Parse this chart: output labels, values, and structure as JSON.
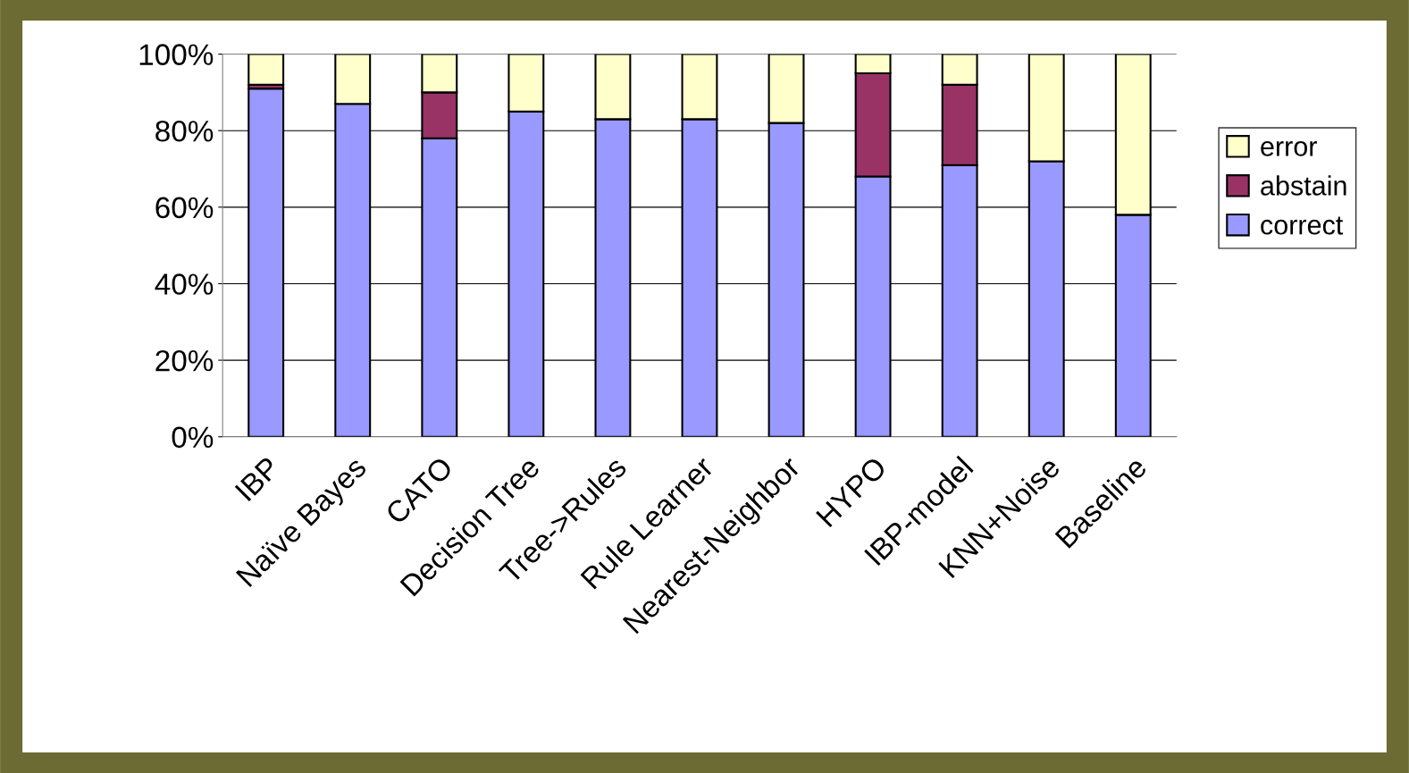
{
  "chart_data": {
    "type": "bar",
    "stacked": true,
    "categories": [
      "IBP",
      "Naïve Bayes",
      "CATO",
      "Decision Tree",
      "Tree->Rules",
      "Rule Learner",
      "Nearest-Neighbor",
      "HYPO",
      "IBP-model",
      "KNN+Noise",
      "Baseline"
    ],
    "series": [
      {
        "name": "correct",
        "color": "#9999ff",
        "values": [
          91,
          87,
          78,
          85,
          83,
          83,
          82,
          68,
          71,
          72,
          58
        ]
      },
      {
        "name": "abstain",
        "color": "#993366",
        "values": [
          1,
          null,
          12,
          null,
          null,
          null,
          null,
          27,
          21,
          null,
          null
        ]
      },
      {
        "name": "error",
        "color": "#ffffcc",
        "values": [
          8,
          13,
          10,
          15,
          17,
          17,
          18,
          5,
          8,
          28,
          42
        ]
      }
    ],
    "ylim": [
      0,
      100
    ],
    "yticks": [
      {
        "value": 0,
        "label": "0%"
      },
      {
        "value": 20,
        "label": "20%"
      },
      {
        "value": 40,
        "label": "40%"
      },
      {
        "value": 60,
        "label": "60%"
      },
      {
        "value": 80,
        "label": "80%"
      },
      {
        "value": 100,
        "label": "100%"
      }
    ],
    "grid": "y",
    "legend": "right"
  }
}
